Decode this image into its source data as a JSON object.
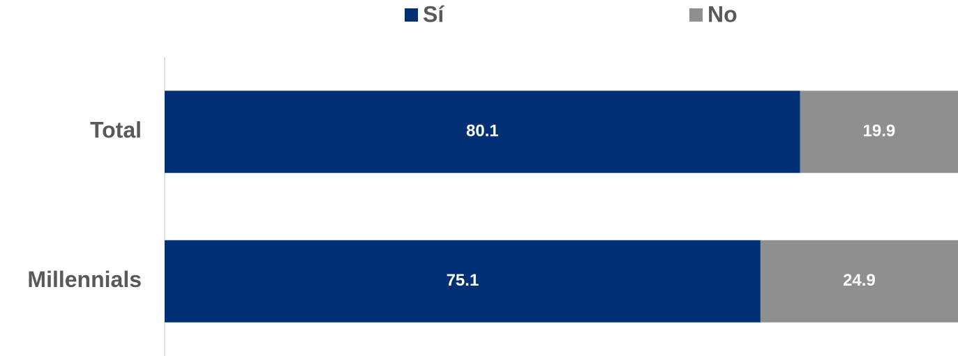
{
  "chart_data": {
    "type": "stacked_barh",
    "categories": [
      "Total",
      "Millennials"
    ],
    "series": [
      {
        "name": "Sí",
        "color": "#003073",
        "values": [
          80.1,
          75.1
        ]
      },
      {
        "name": "No",
        "color": "#8f8f8f",
        "values": [
          19.9,
          24.9
        ]
      }
    ],
    "xlim": [
      0,
      100
    ],
    "legend": "top"
  }
}
